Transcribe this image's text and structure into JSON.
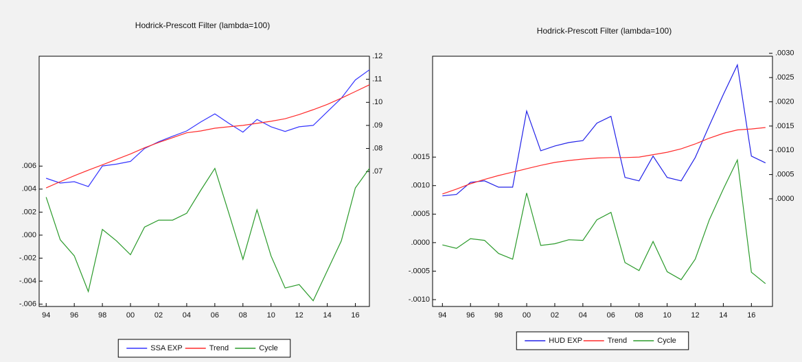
{
  "chart_data": [
    {
      "type": "line",
      "title": "Hodrick-Prescott Filter (lambda=100)",
      "x": [
        1994,
        1995,
        1996,
        1997,
        1998,
        1999,
        2000,
        2001,
        2002,
        2003,
        2004,
        2005,
        2006,
        2007,
        2008,
        2009,
        2010,
        2011,
        2012,
        2013,
        2014,
        2015,
        2016,
        2017
      ],
      "xlim": [
        1993.5,
        2017
      ],
      "xticks": [
        {
          "value": 1994,
          "label": "94"
        },
        {
          "value": 1996,
          "label": "96"
        },
        {
          "value": 1998,
          "label": "98"
        },
        {
          "value": 2000,
          "label": "00"
        },
        {
          "value": 2002,
          "label": "02"
        },
        {
          "value": 2004,
          "label": "04"
        },
        {
          "value": 2006,
          "label": "06"
        },
        {
          "value": 2008,
          "label": "08"
        },
        {
          "value": 2010,
          "label": "10"
        },
        {
          "value": 2012,
          "label": "12"
        },
        {
          "value": 2014,
          "label": "14"
        },
        {
          "value": 2016,
          "label": "16"
        }
      ],
      "ylim": [
        -0.0062,
        0.01555
      ],
      "yticks": [
        {
          "value": -0.006,
          "label": "-.006"
        },
        {
          "value": -0.004,
          "label": "-.004"
        },
        {
          "value": -0.002,
          "label": "-.002"
        },
        {
          "value": 0,
          "label": ".000"
        },
        {
          "value": 0.002,
          "label": ".002"
        },
        {
          "value": 0.004,
          "label": ".004"
        },
        {
          "value": 0.006,
          "label": ".006"
        }
      ],
      "y2lim": [
        0.0115,
        0.12
      ],
      "y2ticks": [
        {
          "value": 0.07,
          "label": ".07"
        },
        {
          "value": 0.08,
          "label": ".08"
        },
        {
          "value": 0.09,
          "label": ".09"
        },
        {
          "value": 0.1,
          "label": ".10"
        },
        {
          "value": 0.11,
          "label": ".11"
        },
        {
          "value": 0.12,
          "label": ".12"
        }
      ],
      "legend": "bottom",
      "series": [
        {
          "name": "SSA EXP",
          "color": "#3434ff",
          "axis": "y2",
          "values": [
            0.0671,
            0.065,
            0.0656,
            0.0635,
            0.0724,
            0.0732,
            0.0744,
            0.08,
            0.0829,
            0.0853,
            0.0876,
            0.0915,
            0.095,
            0.0909,
            0.0871,
            0.0926,
            0.0894,
            0.0874,
            0.0894,
            0.09,
            0.0959,
            0.1018,
            0.1097,
            0.1141
          ]
        },
        {
          "name": "Trend",
          "color": "#ff2a2a",
          "axis": "y2",
          "values": [
            0.0629,
            0.0656,
            0.0682,
            0.0706,
            0.0729,
            0.0753,
            0.0776,
            0.0803,
            0.0826,
            0.0847,
            0.0868,
            0.0876,
            0.0888,
            0.0894,
            0.09,
            0.0909,
            0.0918,
            0.0929,
            0.0947,
            0.0968,
            0.0991,
            0.1018,
            0.1047,
            0.1076
          ]
        },
        {
          "name": "Cycle",
          "color": "#2a9a2a",
          "values": [
            0.0033,
            -0.0004,
            -0.0018,
            -0.0049,
            0.0005,
            -0.0005,
            -0.0017,
            0.0007,
            0.0013,
            0.0013,
            0.0019,
            0.0039,
            0.0058,
            0.0019,
            -0.0021,
            0.0022,
            -0.0018,
            -0.0046,
            -0.0043,
            -0.0057,
            -0.0031,
            -0.0005,
            0.0041,
            0.0058
          ]
        }
      ]
    },
    {
      "type": "line",
      "title": "Hodrick-Prescott Filter (lambda=100)",
      "x": [
        1994,
        1995,
        1996,
        1997,
        1998,
        1999,
        2000,
        2001,
        2002,
        2003,
        2004,
        2005,
        2006,
        2007,
        2008,
        2009,
        2010,
        2011,
        2012,
        2013,
        2014,
        2015,
        2016,
        2017
      ],
      "xlim": [
        1993.3,
        2017.5
      ],
      "xticks": [
        {
          "value": 1994,
          "label": "94"
        },
        {
          "value": 1996,
          "label": "96"
        },
        {
          "value": 1998,
          "label": "98"
        },
        {
          "value": 2000,
          "label": "00"
        },
        {
          "value": 2002,
          "label": "02"
        },
        {
          "value": 2004,
          "label": "04"
        },
        {
          "value": 2006,
          "label": "06"
        },
        {
          "value": 2008,
          "label": "08"
        },
        {
          "value": 2010,
          "label": "10"
        },
        {
          "value": 2012,
          "label": "12"
        },
        {
          "value": 2014,
          "label": "14"
        },
        {
          "value": 2016,
          "label": "16"
        }
      ],
      "ylim": [
        -0.00112,
        0.00327
      ],
      "yticks": [
        {
          "value": -0.001,
          "label": "-.0010"
        },
        {
          "value": -0.0005,
          "label": "-.0005"
        },
        {
          "value": 0,
          "label": ".0000"
        },
        {
          "value": 0.0005,
          "label": ".0005"
        },
        {
          "value": 0.001,
          "label": ".0010"
        },
        {
          "value": 0.0015,
          "label": ".0015"
        }
      ],
      "y2lim": [
        -0.00222,
        0.00294
      ],
      "y2ticks": [
        {
          "value": 0,
          "label": ".0000"
        },
        {
          "value": 0.0005,
          "label": ".0005"
        },
        {
          "value": 0.001,
          "label": ".0010"
        },
        {
          "value": 0.0015,
          "label": ".0015"
        },
        {
          "value": 0.002,
          "label": ".0020"
        },
        {
          "value": 0.0025,
          "label": ".0025"
        },
        {
          "value": 0.003,
          "label": ".0030"
        }
      ],
      "legend": "bottom",
      "series": [
        {
          "name": "HUD EXP",
          "color": "#2020e8",
          "axis": "y2",
          "values": [
            6e-05,
            9e-05,
            0.00034,
            0.00037,
            0.00024,
            0.00024,
            0.00181,
            0.00099,
            0.00109,
            0.00116,
            0.0012,
            0.00156,
            0.0017,
            0.00044,
            0.00037,
            0.00088,
            0.00044,
            0.00037,
            0.00085,
            0.00151,
            0.00215,
            0.00276,
            0.00088,
            0.00074
          ]
        },
        {
          "name": "Trend",
          "color": "#ff2a2a",
          "axis": "y2",
          "values": [
            0.0001,
            0.0002,
            0.00031,
            0.0004,
            0.00048,
            0.00055,
            0.00062,
            0.00069,
            0.00075,
            0.00079,
            0.00082,
            0.00084,
            0.00085,
            0.00085,
            0.00086,
            0.00091,
            0.00096,
            0.00103,
            0.00113,
            0.00125,
            0.00135,
            0.00142,
            0.00144,
            0.00147
          ]
        },
        {
          "name": "Cycle",
          "color": "#2a9a2a",
          "values": [
            -4e-05,
            -0.0001,
            7e-05,
            4e-05,
            -0.00019,
            -0.00029,
            0.00087,
            -5e-05,
            -2e-05,
            5e-05,
            4e-05,
            0.0004,
            0.00053,
            -0.00035,
            -0.00049,
            2e-05,
            -0.00051,
            -0.00065,
            -0.00029,
            0.0004,
            0.00094,
            0.00145,
            -0.00052,
            -0.00072
          ]
        }
      ]
    }
  ]
}
